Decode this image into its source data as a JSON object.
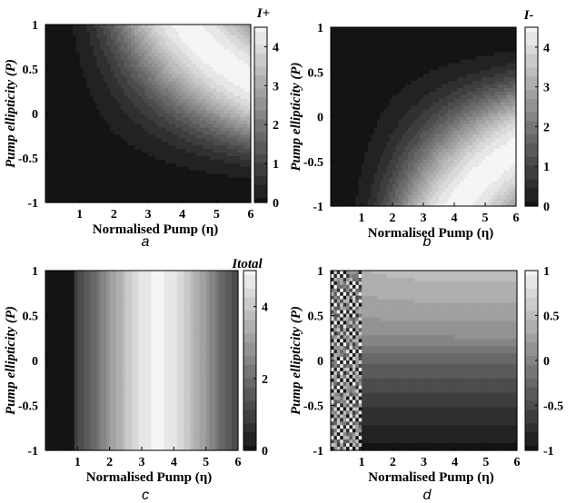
{
  "chart_data": [
    {
      "panel": "a",
      "type": "heatmap",
      "colorbar_title": "I+",
      "xlabel": "Normalised Pump (η)",
      "ylabel": "Pump ellipticity (P)",
      "xlim": [
        0,
        6
      ],
      "ylim": [
        -1,
        1
      ],
      "xticks": [
        "1",
        "2",
        "3",
        "4",
        "5",
        "6"
      ],
      "yticks": [
        "-1",
        "-0.5",
        "0",
        "0.5",
        "1"
      ],
      "clim": [
        0,
        4.5
      ],
      "cticks": [
        "0",
        "1",
        "2",
        "3",
        "4"
      ],
      "colormap": "gray",
      "field": "Intensity of + component; zero below threshold η(1+P)<1, peak ≈ 4.5 along curve η(1+P)≈8 (upper-right ridge)"
    },
    {
      "panel": "b",
      "type": "heatmap",
      "colorbar_title": "I-",
      "xlabel": "Normalised Pump (η)",
      "ylabel": "Pump ellipticity (P)",
      "xlim": [
        0,
        6
      ],
      "ylim": [
        -1,
        1
      ],
      "xticks": [
        "1",
        "2",
        "3",
        "4",
        "5",
        "6"
      ],
      "yticks": [
        "-1",
        "-0.5",
        "0",
        "0.5",
        "1"
      ],
      "clim": [
        0,
        4.5
      ],
      "cticks": [
        "0",
        "1",
        "2",
        "3",
        "4"
      ],
      "colormap": "gray",
      "field": "Intensity of - component; zero below threshold η(1-P)<1, peak ≈ 4.5 along curve η(1-P)≈8 (lower-right ridge)"
    },
    {
      "panel": "c",
      "type": "heatmap",
      "colorbar_title": "Itotal",
      "xlabel": "Normalised Pump (η)",
      "ylabel": "Pump ellipticity (P)",
      "xlim": [
        0,
        6
      ],
      "ylim": [
        -1,
        1
      ],
      "xticks": [
        "1",
        "2",
        "3",
        "4",
        "5",
        "6"
      ],
      "yticks": [
        "-1",
        "-0.5",
        "0",
        "0.5",
        "1"
      ],
      "clim": [
        0,
        5
      ],
      "cticks": [
        "0",
        "2",
        "4"
      ],
      "colormap": "gray",
      "field": "Total intensity independent of P; zero for η<1, peak ≈ 5 near η≈3.5, decreasing toward η=6"
    },
    {
      "panel": "d",
      "type": "heatmap",
      "colorbar_title": "",
      "xlabel": "Normalised Pump (η)",
      "ylabel": "Pump ellipticity (P)",
      "xlim": [
        0,
        6
      ],
      "ylim": [
        -1,
        1
      ],
      "xticks": [
        "1",
        "2",
        "3",
        "4",
        "5",
        "6"
      ],
      "yticks": [
        "-1",
        "-0.5",
        "0",
        "0.5",
        "1"
      ],
      "clim": [
        -1,
        1
      ],
      "cticks": [
        "-1",
        "-0.5",
        "0",
        "0.5",
        "1"
      ],
      "colormap": "gray",
      "field": "Output ellipticity; noisy pattern for η<1, smooth bands for η>1, ≈0 near P=0.2, ≈-1 near P=-1, ≈+0.5 near P=1"
    }
  ]
}
